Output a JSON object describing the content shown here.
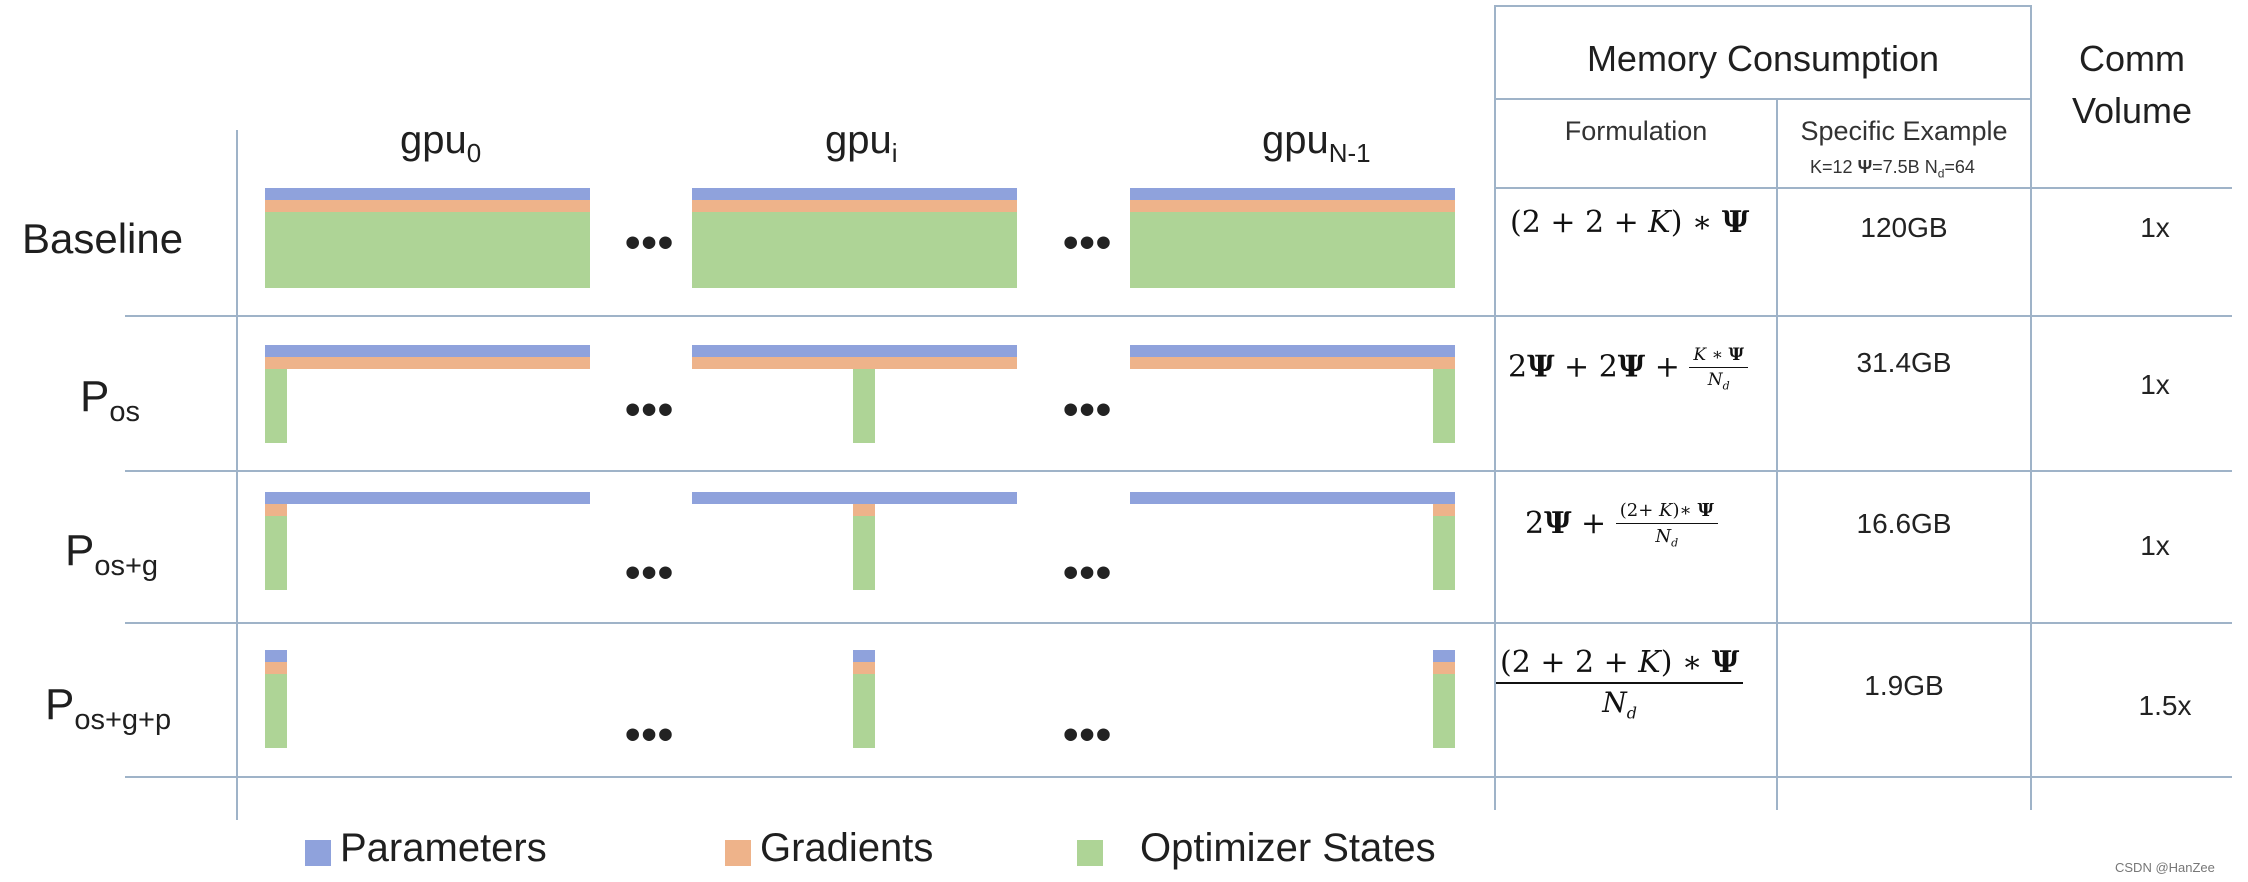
{
  "headers": {
    "gpu": [
      {
        "base": "gpu",
        "sub": "0"
      },
      {
        "base": "gpu",
        "sub": "i"
      },
      {
        "base": "gpu",
        "sub": "N-1"
      }
    ],
    "memory_consumption": "Memory Consumption",
    "comm_volume_line1": "Comm",
    "comm_volume_line2": "Volume",
    "formulation": "Formulation",
    "specific_example": "Specific Example",
    "example_params": {
      "k": "K=12",
      "psi": "Ψ",
      "psi_val": "=7.5B",
      "nd_base": "N",
      "nd_sub": "d",
      "nd_val": "=64"
    }
  },
  "rows": [
    {
      "label": "Baseline",
      "label_sub": "",
      "example": "120GB",
      "comm": "1x",
      "formula": {
        "lead": "(2 + 2 + ",
        "k": "K",
        "tail": ") ∗ ",
        "psi": "Ψ"
      }
    },
    {
      "label": "P",
      "label_sub": "os",
      "example": "31.4GB",
      "comm": "1x",
      "formula": {
        "t1": "2",
        "psi": "Ψ",
        "t2": " + 2",
        "t3": " + ",
        "num_k": "K",
        "num_op": " ∗ ",
        "den_n": "N",
        "den_d": "d"
      }
    },
    {
      "label": "P",
      "label_sub": "os+g",
      "example": "16.6GB",
      "comm": "1x",
      "formula": {
        "t1": "2",
        "psi": "Ψ",
        "t2": " + ",
        "num_lead": "(2+ ",
        "num_k": "K",
        "num_tail": ")∗ ",
        "den_n": "N",
        "den_d": "d"
      }
    },
    {
      "label": "P",
      "label_sub": "os+g+p",
      "example": "1.9GB",
      "comm": "1.5x",
      "formula": {
        "num_lead": "(2 +  2 +  ",
        "num_k": "K",
        "num_tail": ")  ∗  ",
        "psi": "Ψ",
        "den_n": "N",
        "den_d": "d"
      }
    }
  ],
  "ellipsis": "•••",
  "legend": [
    {
      "label": "Parameters",
      "color": "#8fa2dc"
    },
    {
      "label": "Gradients",
      "color": "#eeb38a"
    },
    {
      "label": "Optimizer States",
      "color": "#aed496"
    }
  ],
  "watermark": "CSDN @HanZee"
}
